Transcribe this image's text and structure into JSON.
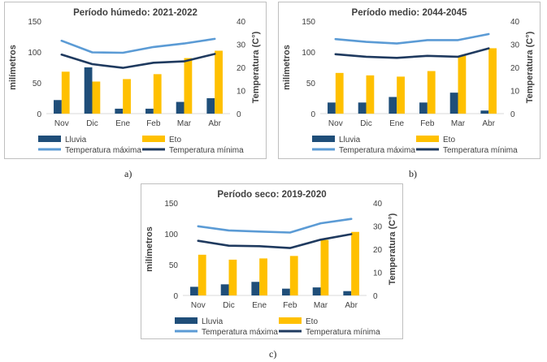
{
  "chart_data": [
    {
      "type": "bar+line",
      "panel_label": "a)",
      "title": "Período húmedo: 2021-2022",
      "categories": [
        "Nov",
        "Dic",
        "Ene",
        "Feb",
        "Mar",
        "Abr"
      ],
      "ylabel": "milímetros",
      "ylabel_right": "Temperatura (C°)",
      "ylim": [
        0,
        150
      ],
      "yticks": [
        0,
        50,
        100,
        150
      ],
      "ylim_right": [
        0,
        40
      ],
      "yticks_right": [
        0,
        10,
        20,
        30,
        40
      ],
      "bars": [
        {
          "name": "Lluvia",
          "color": "#1f4e79",
          "values": [
            22,
            75,
            8,
            8,
            19,
            25
          ]
        },
        {
          "name": "Eto",
          "color": "#ffc000",
          "values": [
            68,
            52,
            56,
            64,
            90,
            102
          ]
        }
      ],
      "lines": [
        {
          "name": "Temperatura máxima",
          "color": "#5b9bd5",
          "values": [
            31.5,
            26.5,
            26.3,
            28.8,
            30.3,
            32.3
          ]
        },
        {
          "name": "Temperatura mínima",
          "color": "#1f3a5f",
          "values": [
            25.5,
            21.4,
            19.8,
            22.0,
            22.6,
            25.8
          ]
        }
      ]
    },
    {
      "type": "bar+line",
      "panel_label": "b)",
      "title": "Período medio: 2044-2045",
      "categories": [
        "Nov",
        "Dic",
        "Ene",
        "Feb",
        "Mar",
        "Abr"
      ],
      "ylabel": "milímetros",
      "ylabel_right": "Temperatura (C°)",
      "ylim": [
        0,
        150
      ],
      "yticks": [
        0,
        50,
        100,
        150
      ],
      "ylim_right": [
        0,
        40
      ],
      "yticks_right": [
        0,
        10,
        20,
        30,
        40
      ],
      "bars": [
        {
          "name": "Lluvia",
          "color": "#1f4e79",
          "values": [
            18,
            18,
            27,
            18,
            34,
            5
          ]
        },
        {
          "name": "Eto",
          "color": "#ffc000",
          "values": [
            66,
            62,
            60,
            69,
            94,
            106
          ]
        }
      ],
      "lines": [
        {
          "name": "Temperatura máxima",
          "color": "#5b9bd5",
          "values": [
            32.2,
            31.0,
            30.3,
            31.8,
            31.8,
            34.4
          ]
        },
        {
          "name": "Temperatura mínima",
          "color": "#1f3a5f",
          "values": [
            25.7,
            24.6,
            24.1,
            25.0,
            24.6,
            28.2
          ]
        }
      ]
    },
    {
      "type": "bar+line",
      "panel_label": "c)",
      "title": "Período seco: 2019-2020",
      "categories": [
        "Nov",
        "Dic",
        "Ene",
        "Feb",
        "Mar",
        "Abr"
      ],
      "ylabel": "milímetros",
      "ylabel_right": "Temperatura (C°)",
      "ylim": [
        0,
        150
      ],
      "yticks": [
        0,
        50,
        100,
        150
      ],
      "ylim_right": [
        0,
        40
      ],
      "yticks_right": [
        0,
        10,
        20,
        30,
        40
      ],
      "bars": [
        {
          "name": "Lluvia",
          "color": "#1f4e79",
          "values": [
            14,
            18,
            22,
            11,
            13,
            7
          ]
        },
        {
          "name": "Eto",
          "color": "#ffc000",
          "values": [
            66,
            58,
            60,
            64,
            90,
            103
          ]
        }
      ],
      "lines": [
        {
          "name": "Temperatura máxima",
          "color": "#5b9bd5",
          "values": [
            29.9,
            28.1,
            27.6,
            27.2,
            31.2,
            33.1
          ]
        },
        {
          "name": "Temperatura mínima",
          "color": "#1f3a5f",
          "values": [
            23.6,
            21.5,
            21.3,
            20.5,
            24.1,
            26.5
          ]
        }
      ]
    }
  ]
}
